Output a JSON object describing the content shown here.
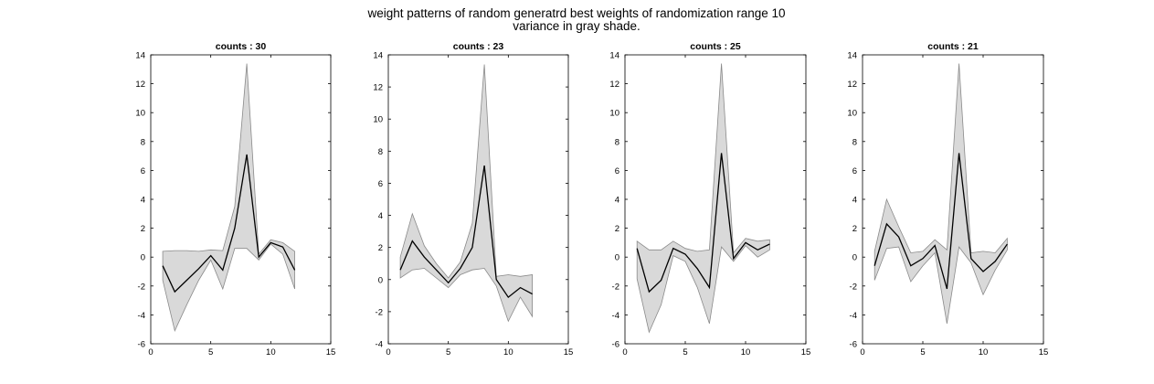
{
  "figure": {
    "title_line1": "weight patterns of random generatrd best weights of randomization range 10",
    "title_line2": "variance in gray shade."
  },
  "chart_data": [
    {
      "type": "line",
      "title": "counts : 30",
      "xlim": [
        0,
        15
      ],
      "ylim": [
        -6,
        14
      ],
      "xticks": [
        0,
        5,
        10,
        15
      ],
      "yticks": [
        -6,
        -4,
        -2,
        0,
        2,
        4,
        6,
        8,
        10,
        12,
        14
      ],
      "x": [
        1,
        2,
        3,
        4,
        5,
        6,
        7,
        8,
        9,
        10,
        11,
        12
      ],
      "mean": [
        -0.6,
        -2.4,
        -1.6,
        -0.8,
        0.1,
        -0.9,
        2.0,
        7.1,
        0.0,
        1.0,
        0.7,
        -0.9
      ],
      "upper": [
        0.4,
        0.45,
        0.45,
        0.4,
        0.5,
        0.45,
        3.5,
        13.4,
        0.2,
        1.2,
        1.0,
        0.4
      ],
      "lower": [
        -1.6,
        -5.1,
        -3.3,
        -1.6,
        -0.2,
        -2.2,
        0.6,
        0.6,
        -0.2,
        0.9,
        0.2,
        -2.2
      ],
      "colors": {
        "mean": "#000000",
        "band_fill": "#d9d9d9",
        "band_edge": "#8a8a8a"
      }
    },
    {
      "type": "line",
      "title": "counts : 23",
      "xlim": [
        0,
        15
      ],
      "ylim": [
        -4,
        14
      ],
      "xticks": [
        0,
        5,
        10,
        15
      ],
      "yticks": [
        -4,
        -2,
        0,
        2,
        4,
        6,
        8,
        10,
        12,
        14
      ],
      "x": [
        1,
        2,
        3,
        4,
        5,
        6,
        7,
        8,
        9,
        10,
        11,
        12
      ],
      "mean": [
        0.6,
        2.4,
        1.4,
        0.6,
        -0.2,
        0.7,
        2.0,
        7.1,
        0.0,
        -1.1,
        -0.5,
        -0.9
      ],
      "upper": [
        1.4,
        4.1,
        2.1,
        1.0,
        0.1,
        1.1,
        3.5,
        13.4,
        0.2,
        0.3,
        0.2,
        0.3
      ],
      "lower": [
        0.1,
        0.6,
        0.7,
        0.1,
        -0.5,
        0.3,
        0.6,
        0.7,
        -0.4,
        -2.6,
        -1.1,
        -2.3
      ],
      "colors": {
        "mean": "#000000",
        "band_fill": "#d9d9d9",
        "band_edge": "#8a8a8a"
      }
    },
    {
      "type": "line",
      "title": "counts : 25",
      "xlim": [
        0,
        15
      ],
      "ylim": [
        -6,
        14
      ],
      "xticks": [
        0,
        5,
        10,
        15
      ],
      "yticks": [
        -6,
        -4,
        -2,
        0,
        2,
        4,
        6,
        8,
        10,
        12,
        14
      ],
      "x": [
        1,
        2,
        3,
        4,
        5,
        6,
        7,
        8,
        9,
        10,
        11,
        12
      ],
      "mean": [
        0.6,
        -2.4,
        -1.6,
        0.6,
        0.2,
        -0.8,
        -2.1,
        7.2,
        -0.1,
        1.0,
        0.5,
        0.9
      ],
      "upper": [
        1.1,
        0.5,
        0.5,
        1.1,
        0.6,
        0.4,
        0.5,
        13.4,
        0.3,
        1.3,
        1.1,
        1.2
      ],
      "lower": [
        -1.5,
        -5.2,
        -3.3,
        0.1,
        -0.3,
        -2.1,
        -4.6,
        0.7,
        -0.3,
        0.8,
        0.0,
        0.5
      ],
      "colors": {
        "mean": "#000000",
        "band_fill": "#d9d9d9",
        "band_edge": "#8a8a8a"
      }
    },
    {
      "type": "line",
      "title": "counts : 21",
      "xlim": [
        0,
        15
      ],
      "ylim": [
        -6,
        14
      ],
      "xticks": [
        0,
        5,
        10,
        15
      ],
      "yticks": [
        -6,
        -4,
        -2,
        0,
        2,
        4,
        6,
        8,
        10,
        12,
        14
      ],
      "x": [
        1,
        2,
        3,
        4,
        5,
        6,
        7,
        8,
        9,
        10,
        11,
        12
      ],
      "mean": [
        -0.6,
        2.3,
        1.4,
        -0.6,
        -0.1,
        0.8,
        -2.2,
        7.2,
        -0.1,
        -1.0,
        -0.3,
        0.9
      ],
      "upper": [
        0.4,
        4.0,
        2.1,
        0.3,
        0.4,
        1.2,
        0.5,
        13.4,
        0.3,
        0.4,
        0.3,
        1.3
      ],
      "lower": [
        -1.6,
        0.6,
        0.7,
        -1.7,
        -0.6,
        0.3,
        -4.6,
        0.7,
        -0.4,
        -2.6,
        -0.9,
        0.5
      ],
      "colors": {
        "mean": "#000000",
        "band_fill": "#d9d9d9",
        "band_edge": "#8a8a8a"
      }
    }
  ]
}
